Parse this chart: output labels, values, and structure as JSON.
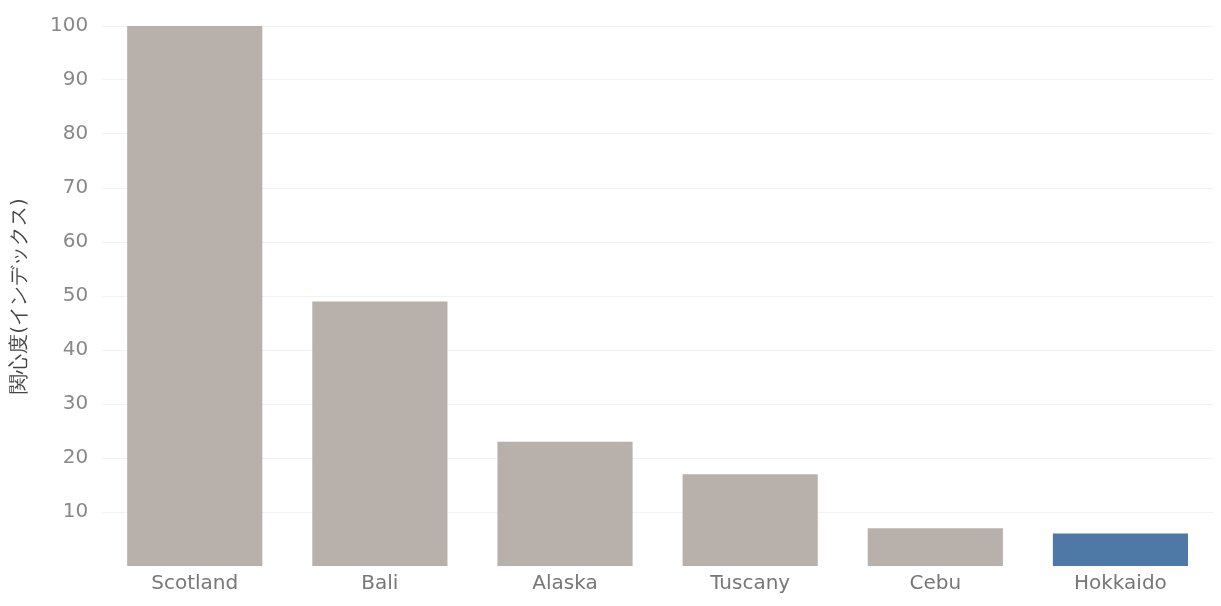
{
  "chart_data": {
    "type": "bar",
    "ylabel": "関心度(インデックス)",
    "categories": [
      "Scotland",
      "Bali",
      "Alaska",
      "Tuscany",
      "Cebu",
      "Hokkaido"
    ],
    "values": [
      100,
      49,
      23,
      17,
      7,
      6
    ],
    "colors": [
      "#b7b0ab",
      "#b7b0ab",
      "#b7b0ab",
      "#b7b0ab",
      "#b7b0ab",
      "#4e79a7"
    ],
    "ylim": [
      0,
      100
    ],
    "yticks": [
      10,
      20,
      30,
      40,
      50,
      60,
      70,
      80,
      90,
      100
    ],
    "grid": "y",
    "legend": false
  }
}
